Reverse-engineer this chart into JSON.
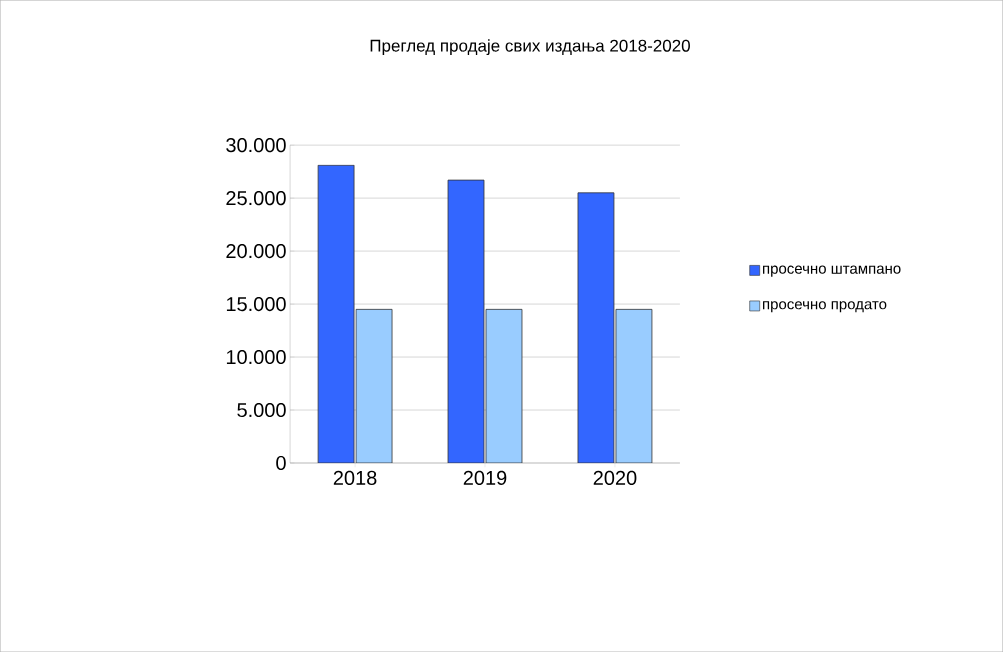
{
  "chart_data": {
    "type": "bar",
    "title": "Преглед продаје свих издања 2018-2020",
    "categories": [
      "2018",
      "2019",
      "2020"
    ],
    "series": [
      {
        "name": "просечно штампано",
        "color": "#3366ff",
        "values": [
          28100,
          26700,
          25500
        ]
      },
      {
        "name": "просечно продато",
        "color": "#99ccff",
        "values": [
          14500,
          14500,
          14500
        ]
      }
    ],
    "ylim": [
      0,
      30000
    ],
    "yticks": [
      {
        "value": 0,
        "label": "0"
      },
      {
        "value": 5000,
        "label": "5.000"
      },
      {
        "value": 10000,
        "label": "10.000"
      },
      {
        "value": 15000,
        "label": "15.000"
      },
      {
        "value": 20000,
        "label": "20.000"
      },
      {
        "value": 25000,
        "label": "25.000"
      },
      {
        "value": 30000,
        "label": "30.000"
      }
    ],
    "grid": "y",
    "legend": "right"
  }
}
